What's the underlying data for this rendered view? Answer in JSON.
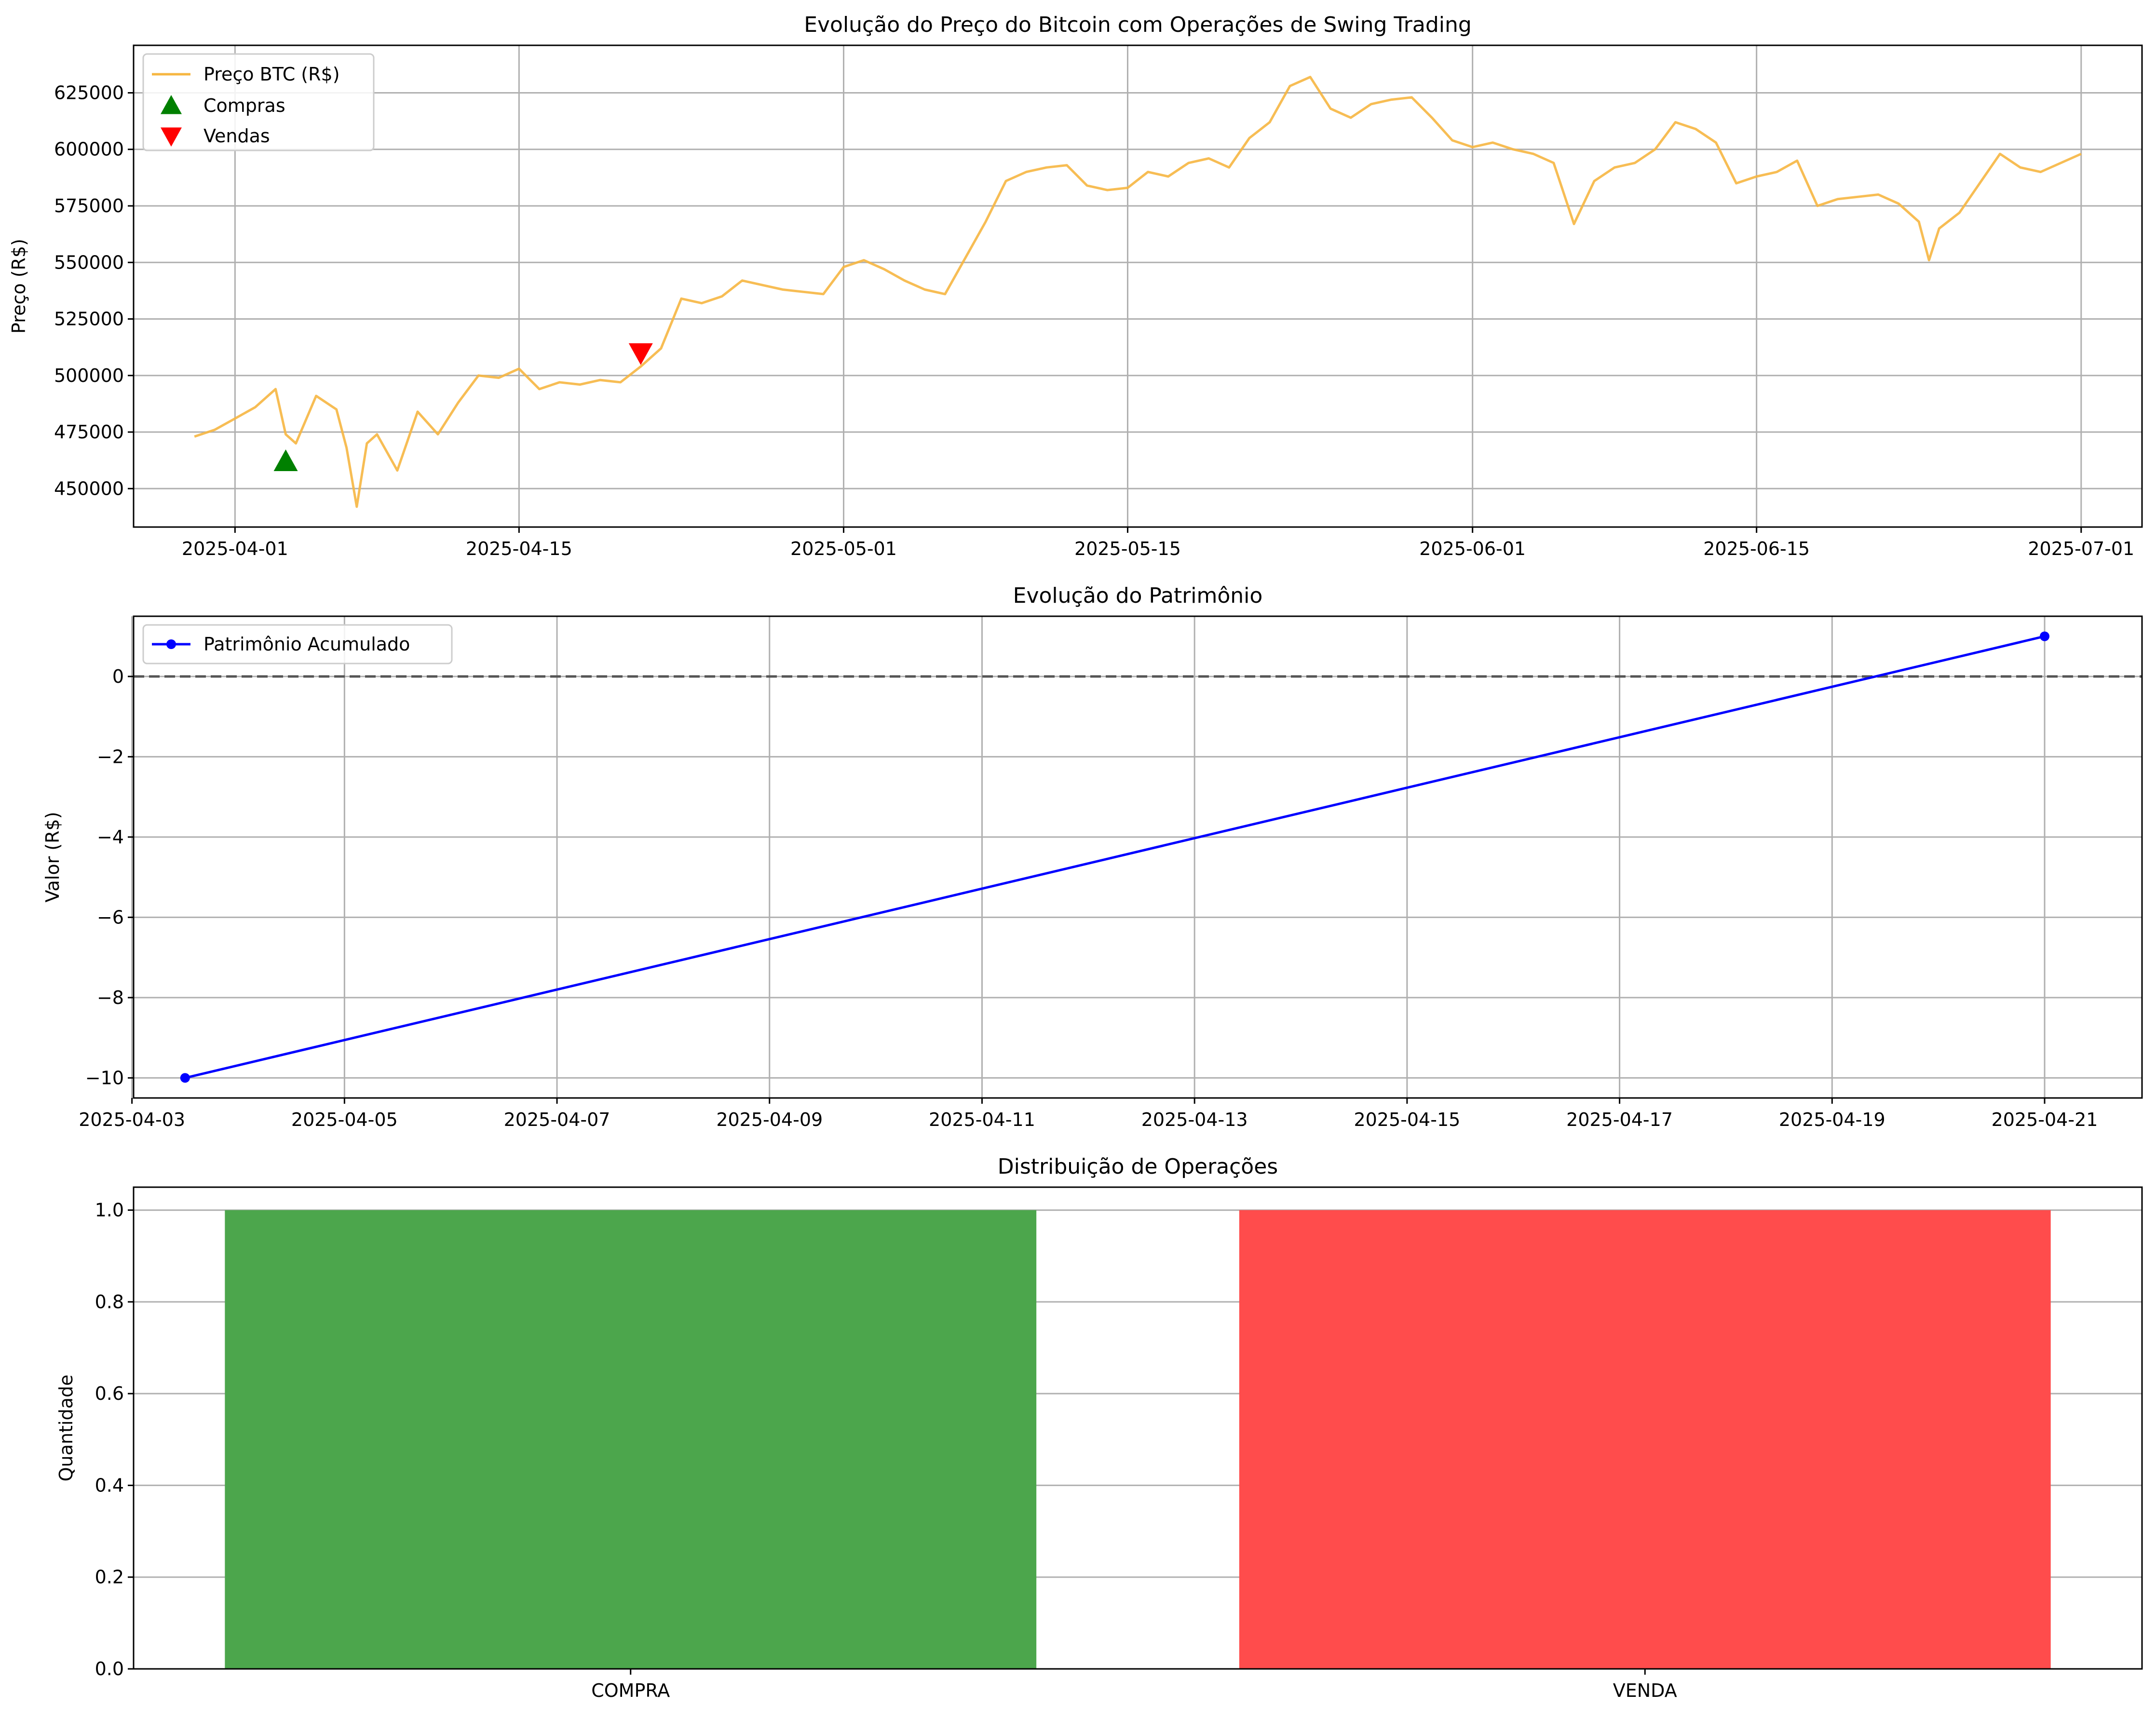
{
  "chart_data": [
    {
      "type": "line",
      "title": "Evolução do Preço do Bitcoin com Operações de Swing Trading",
      "ylabel": "Preço (R$)",
      "xlabel": "",
      "x_range": [
        "2025-03-27",
        "2025-07-04"
      ],
      "ylim": [
        433000,
        646000
      ],
      "y_ticks": [
        450000,
        475000,
        500000,
        525000,
        550000,
        575000,
        600000,
        625000
      ],
      "x_ticks": [
        "2025-04-01",
        "2025-04-15",
        "2025-05-01",
        "2025-05-15",
        "2025-06-01",
        "2025-06-15",
        "2025-07-01"
      ],
      "grid": true,
      "legend_position": "top-left",
      "series": [
        {
          "name": "Preço BTC (R$)",
          "color": "#f6b641",
          "points": [
            [
              "2025-03-30",
              473000
            ],
            [
              "2025-03-31",
              476000
            ],
            [
              "2025-04-01",
              481000
            ],
            [
              "2025-04-02",
              486000
            ],
            [
              "2025-04-03",
              494000
            ],
            [
              "2025-04-03T12",
              474000
            ],
            [
              "2025-04-04",
              470000
            ],
            [
              "2025-04-05",
              491000
            ],
            [
              "2025-04-06",
              485000
            ],
            [
              "2025-04-06T12",
              468000
            ],
            [
              "2025-04-07",
              442000
            ],
            [
              "2025-04-07T12",
              470000
            ],
            [
              "2025-04-08",
              474000
            ],
            [
              "2025-04-09",
              458000
            ],
            [
              "2025-04-10",
              484000
            ],
            [
              "2025-04-11",
              474000
            ],
            [
              "2025-04-12",
              488000
            ],
            [
              "2025-04-13",
              500000
            ],
            [
              "2025-04-14",
              499000
            ],
            [
              "2025-04-15",
              503000
            ],
            [
              "2025-04-16",
              494000
            ],
            [
              "2025-04-17",
              497000
            ],
            [
              "2025-04-18",
              496000
            ],
            [
              "2025-04-19",
              498000
            ],
            [
              "2025-04-20",
              497000
            ],
            [
              "2025-04-21",
              504000
            ],
            [
              "2025-04-22",
              512000
            ],
            [
              "2025-04-23",
              534000
            ],
            [
              "2025-04-24",
              532000
            ],
            [
              "2025-04-25",
              535000
            ],
            [
              "2025-04-26",
              542000
            ],
            [
              "2025-04-27",
              540000
            ],
            [
              "2025-04-28",
              538000
            ],
            [
              "2025-04-29",
              537000
            ],
            [
              "2025-04-30",
              536000
            ],
            [
              "2025-05-01",
              548000
            ],
            [
              "2025-05-02",
              551000
            ],
            [
              "2025-05-03",
              547000
            ],
            [
              "2025-05-04",
              542000
            ],
            [
              "2025-05-05",
              538000
            ],
            [
              "2025-05-06",
              536000
            ],
            [
              "2025-05-07",
              552000
            ],
            [
              "2025-05-08",
              568000
            ],
            [
              "2025-05-09",
              586000
            ],
            [
              "2025-05-10",
              590000
            ],
            [
              "2025-05-11",
              592000
            ],
            [
              "2025-05-12",
              593000
            ],
            [
              "2025-05-13",
              584000
            ],
            [
              "2025-05-14",
              582000
            ],
            [
              "2025-05-15",
              583000
            ],
            [
              "2025-05-16",
              590000
            ],
            [
              "2025-05-17",
              588000
            ],
            [
              "2025-05-18",
              594000
            ],
            [
              "2025-05-19",
              596000
            ],
            [
              "2025-05-20",
              592000
            ],
            [
              "2025-05-21",
              605000
            ],
            [
              "2025-05-22",
              612000
            ],
            [
              "2025-05-23",
              628000
            ],
            [
              "2025-05-24",
              632000
            ],
            [
              "2025-05-25",
              618000
            ],
            [
              "2025-05-26",
              614000
            ],
            [
              "2025-05-27",
              620000
            ],
            [
              "2025-05-28",
              622000
            ],
            [
              "2025-05-29",
              623000
            ],
            [
              "2025-05-30",
              614000
            ],
            [
              "2025-05-31",
              604000
            ],
            [
              "2025-06-01",
              601000
            ],
            [
              "2025-06-02",
              603000
            ],
            [
              "2025-06-03",
              600000
            ],
            [
              "2025-06-04",
              598000
            ],
            [
              "2025-06-05",
              594000
            ],
            [
              "2025-06-06",
              567000
            ],
            [
              "2025-06-07",
              586000
            ],
            [
              "2025-06-08",
              592000
            ],
            [
              "2025-06-09",
              594000
            ],
            [
              "2025-06-10",
              600000
            ],
            [
              "2025-06-11",
              612000
            ],
            [
              "2025-06-12",
              609000
            ],
            [
              "2025-06-13",
              603000
            ],
            [
              "2025-06-14",
              585000
            ],
            [
              "2025-06-15",
              588000
            ],
            [
              "2025-06-16",
              590000
            ],
            [
              "2025-06-17",
              595000
            ],
            [
              "2025-06-18",
              575000
            ],
            [
              "2025-06-19",
              578000
            ],
            [
              "2025-06-20",
              579000
            ],
            [
              "2025-06-21",
              580000
            ],
            [
              "2025-06-22",
              576000
            ],
            [
              "2025-06-23",
              568000
            ],
            [
              "2025-06-23T12",
              551000
            ],
            [
              "2025-06-24",
              565000
            ],
            [
              "2025-06-25",
              572000
            ],
            [
              "2025-06-26",
              585000
            ],
            [
              "2025-06-27",
              598000
            ],
            [
              "2025-06-28",
              592000
            ],
            [
              "2025-06-29",
              590000
            ],
            [
              "2025-06-30",
              594000
            ],
            [
              "2025-07-01",
              598000
            ]
          ]
        },
        {
          "name": "Compras",
          "color": "#008000",
          "marker": "triangle-up",
          "points": [
            [
              "2025-04-03T12",
              462000
            ]
          ]
        },
        {
          "name": "Vendas",
          "color": "#ff0000",
          "marker": "triangle-down",
          "points": [
            [
              "2025-04-21",
              510000
            ]
          ]
        }
      ]
    },
    {
      "type": "line",
      "title": "Evolução do Patrimônio",
      "ylabel": "Valor (R$)",
      "xlabel": "",
      "x_range": [
        "2025-04-03T00:22",
        "2025-04-21T22"
      ],
      "ylim": [
        -10.5,
        1.5
      ],
      "y_ticks": [
        -10,
        -8,
        -6,
        -4,
        -2,
        0
      ],
      "y_tick_labels": [
        "−10",
        "−8",
        "−6",
        "−4",
        "−2",
        "0"
      ],
      "x_ticks": [
        "2025-04-03",
        "2025-04-05",
        "2025-04-07",
        "2025-04-09",
        "2025-04-11",
        "2025-04-13",
        "2025-04-15",
        "2025-04-17",
        "2025-04-19",
        "2025-04-21"
      ],
      "grid": true,
      "legend_position": "top-left",
      "reference_line": {
        "y": 0,
        "style": "dashed",
        "color": "#555555"
      },
      "series": [
        {
          "name": "Patrimônio Acumulado",
          "color": "#0000ff",
          "marker": "circle",
          "points": [
            [
              "2025-04-03T12",
              -10
            ],
            [
              "2025-04-21",
              1
            ]
          ]
        }
      ]
    },
    {
      "type": "bar",
      "title": "Distribuição de Operações",
      "ylabel": "Quantidade",
      "xlabel": "",
      "categories": [
        "COMPRA",
        "VENDA"
      ],
      "values": [
        1,
        1
      ],
      "colors": [
        "#4ca64c",
        "#ff4c4c"
      ],
      "ylim": [
        0,
        1.05
      ],
      "y_ticks": [
        0.0,
        0.2,
        0.4,
        0.6,
        0.8,
        1.0
      ],
      "y_tick_labels": [
        "0.0",
        "0.2",
        "0.4",
        "0.6",
        "0.8",
        "1.0"
      ],
      "grid": true
    }
  ]
}
